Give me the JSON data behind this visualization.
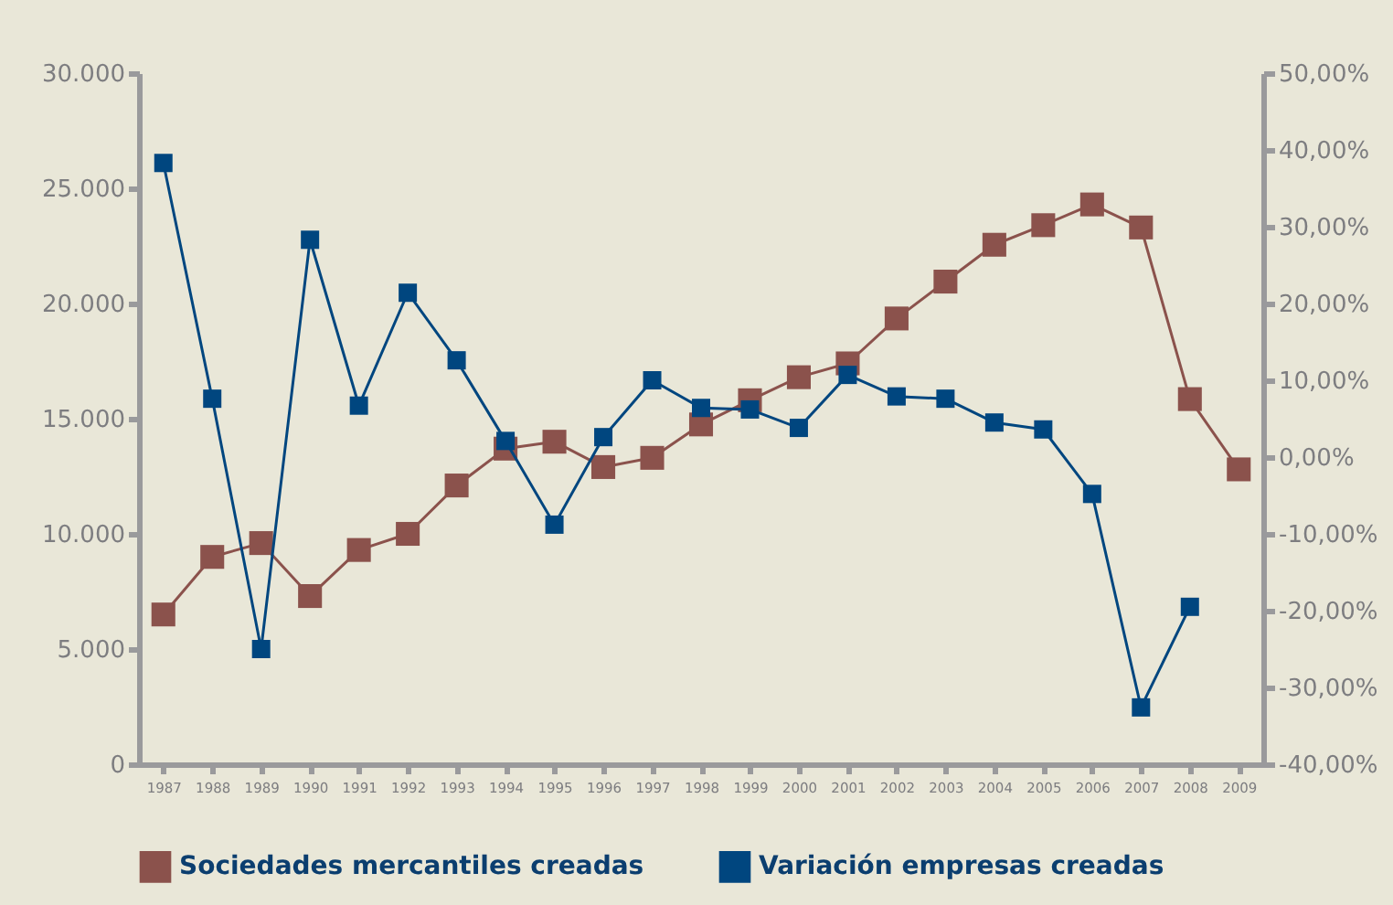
{
  "chart_data": {
    "type": "line",
    "categories": [
      "1987",
      "1988",
      "1989",
      "1990",
      "1991",
      "1992",
      "1993",
      "1994",
      "1995",
      "1996",
      "1997",
      "1998",
      "1999",
      "2000",
      "2001",
      "2002",
      "2003",
      "2004",
      "2005",
      "2006",
      "2007",
      "2008",
      "2009"
    ],
    "series": [
      {
        "name": "Sociedades mercantiles creadas",
        "color": "#8b524c",
        "values": [
          6500,
          9000,
          9600,
          7300,
          9300,
          10000,
          12100,
          13700,
          14000,
          12900,
          13300,
          14750,
          15800,
          16800,
          17400,
          19350,
          20950,
          22550,
          23400,
          24300,
          23300,
          15850,
          12800
        ]
      },
      {
        "name": "Variación empresas creadas",
        "color": "#00467f",
        "axis": "y2",
        "values": [
          38.3,
          7.6,
          -25,
          28.3,
          6.7,
          21.4,
          12.6,
          2.1,
          -8.8,
          2.6,
          10,
          6.4,
          6.2,
          3.8,
          10.7,
          7.9,
          7.6,
          4.5,
          3.6,
          -4.8,
          -32.6,
          -19.5,
          null
        ]
      }
    ],
    "ylim": [
      0,
      30000
    ],
    "yticks": [
      {
        "value": 0,
        "label": "0"
      },
      {
        "value": 5000,
        "label": "5.000"
      },
      {
        "value": 10000,
        "label": "10.000"
      },
      {
        "value": 15000,
        "label": "15.000"
      },
      {
        "value": 20000,
        "label": "20.000"
      },
      {
        "value": 25000,
        "label": "25.000"
      },
      {
        "value": 30000,
        "label": "30.000"
      }
    ],
    "y2lim": [
      -40,
      50
    ],
    "y2ticks": [
      {
        "value": -40,
        "label": "-40,00%"
      },
      {
        "value": -30,
        "label": "-30,00%"
      },
      {
        "value": -20,
        "label": "-20,00%"
      },
      {
        "value": -10,
        "label": "-10,00%"
      },
      {
        "value": 0,
        "label": "0,00%"
      },
      {
        "value": 10,
        "label": "10,00%"
      },
      {
        "value": 20,
        "label": "20,00%"
      },
      {
        "value": 30,
        "label": "30,00%"
      },
      {
        "value": 40,
        "label": "40,00%"
      },
      {
        "value": 50,
        "label": "50,00%"
      }
    ],
    "marker": "square",
    "legend": "bottom"
  }
}
